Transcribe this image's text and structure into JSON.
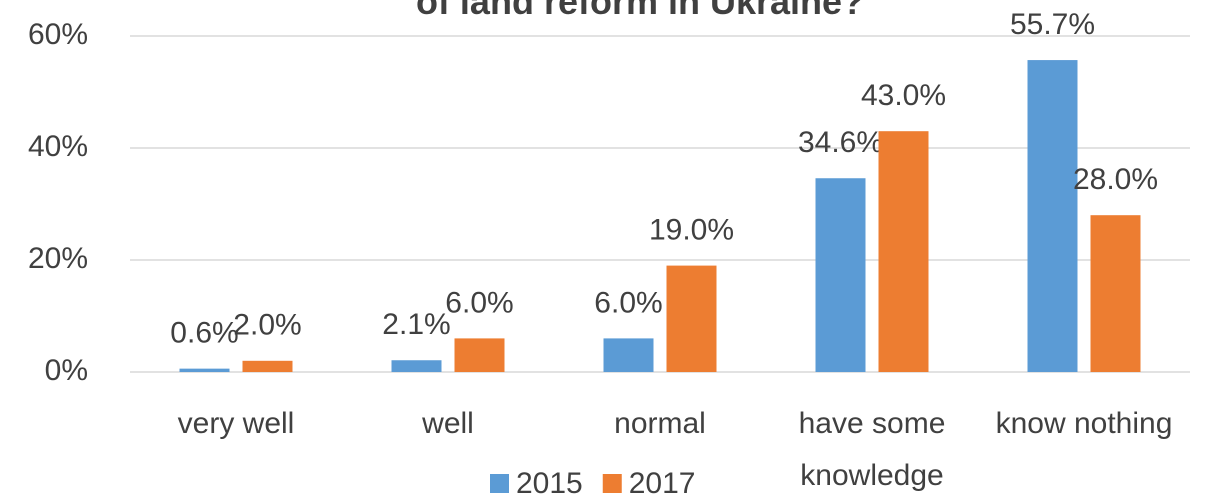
{
  "chart_data": {
    "type": "bar",
    "title": "of land reform in Ukraine?",
    "categories": [
      "very well",
      "well",
      "normal",
      "have some knowledge",
      "know nothing"
    ],
    "series": [
      {
        "name": "2015",
        "color": "#5b9bd5",
        "values": [
          0.6,
          2.1,
          6.0,
          34.6,
          55.7
        ],
        "value_labels": [
          "0.6%",
          "2.1%",
          "6.0%",
          "34.6%",
          "55.7%"
        ]
      },
      {
        "name": "2017",
        "color": "#ed7d31",
        "values": [
          2.0,
          6.0,
          19.0,
          43.0,
          28.0
        ],
        "value_labels": [
          "2.0%",
          "6.0%",
          "19.0%",
          "43.0%",
          "28.0%"
        ]
      }
    ],
    "ylim": [
      0,
      60
    ],
    "yticks": [
      {
        "value": 0,
        "label": "0%"
      },
      {
        "value": 20,
        "label": "20%"
      },
      {
        "value": 40,
        "label": "40%"
      },
      {
        "value": 60,
        "label": "60%"
      }
    ],
    "grid": true,
    "legend": "bottom"
  }
}
